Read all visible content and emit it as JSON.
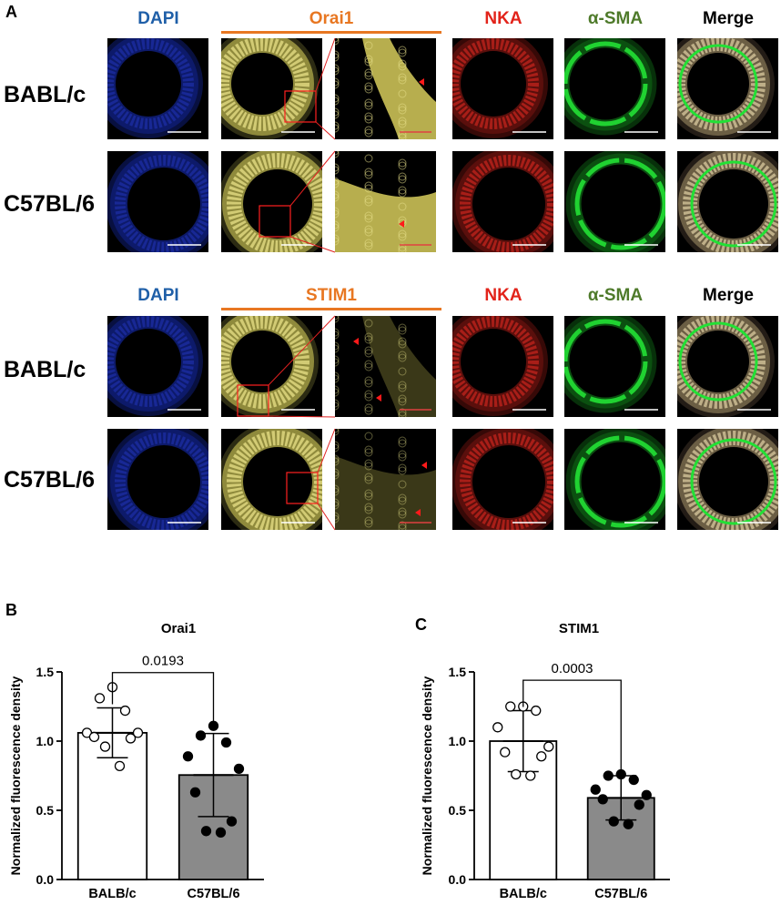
{
  "figure": {
    "panel_a": {
      "letter": "A",
      "blocks": [
        {
          "channels": [
            "DAPI",
            "Orai1",
            "NKA",
            "α-SMA",
            "Merge"
          ],
          "rows": [
            "BABL/c",
            "C57BL/6"
          ]
        },
        {
          "channels": [
            "DAPI",
            "STIM1",
            "NKA",
            "α-SMA",
            "Merge"
          ],
          "rows": [
            "BABL/c",
            "C57BL/6"
          ]
        }
      ]
    },
    "channel_colors": {
      "DAPI": "#1F5FA8",
      "target": "#E87722",
      "NKA": "#E2231A",
      "α-SMA": "#4E7A2A",
      "Merge": "#000000"
    }
  },
  "chart_data": [
    {
      "panel": "B",
      "type": "bar",
      "title": "Orai1",
      "ylabel": "Normalized fluorescence density",
      "xlabel": "",
      "categories": [
        "BALB/c",
        "C57BL/6"
      ],
      "values": [
        1.06,
        0.755
      ],
      "error": [
        0.18,
        0.3
      ],
      "points": [
        [
          1.39,
          1.31,
          1.22,
          1.06,
          1.06,
          1.03,
          1.02,
          0.96,
          0.82
        ],
        [
          1.11,
          1.04,
          0.99,
          0.89,
          0.8,
          0.63,
          0.42,
          0.35,
          0.34
        ]
      ],
      "bar_fills": [
        "#ffffff",
        "#8a8a8a"
      ],
      "point_fills": [
        "#ffffff",
        "#000000"
      ],
      "ylim": [
        0,
        1.5
      ],
      "yticks": [
        "0.0",
        "0.5",
        "1.0",
        "1.5"
      ],
      "annotation": "0.0193"
    },
    {
      "panel": "C",
      "type": "bar",
      "title": "STIM1",
      "ylabel": "Normalized fluorescence density",
      "xlabel": "",
      "categories": [
        "BALB/c",
        "C57BL/6"
      ],
      "values": [
        1.0,
        0.59
      ],
      "error": [
        0.22,
        0.16
      ],
      "points": [
        [
          1.25,
          1.25,
          1.22,
          1.1,
          0.96,
          0.92,
          0.89,
          0.76,
          0.75
        ],
        [
          0.76,
          0.75,
          0.72,
          0.65,
          0.61,
          0.58,
          0.54,
          0.42,
          0.4
        ]
      ],
      "bar_fills": [
        "#ffffff",
        "#8a8a8a"
      ],
      "point_fills": [
        "#ffffff",
        "#000000"
      ],
      "ylim": [
        0,
        1.5
      ],
      "yticks": [
        "0.0",
        "0.5",
        "1.0",
        "1.5"
      ],
      "annotation": "0.0003"
    }
  ]
}
